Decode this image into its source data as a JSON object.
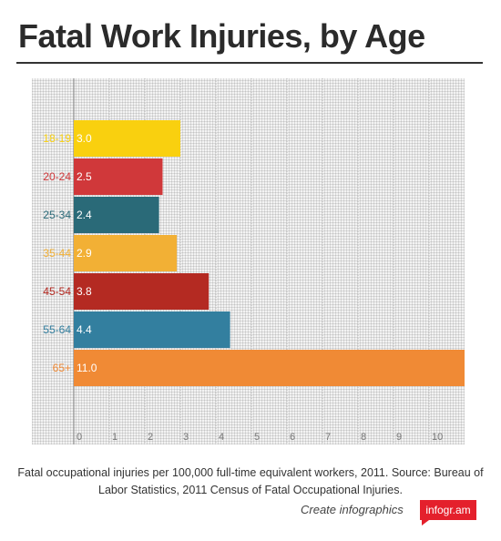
{
  "title": "Fatal Work Injuries, by Age",
  "caption": "Fatal occupational injuries per 100,000 full-time equivalent workers, 2011. Source: Bureau of Labor Statistics, 2011 Census of Fatal Occupational Injuries.",
  "footer": {
    "create_label": "Create infographics",
    "brand": "infogr.am"
  },
  "colors": {
    "title": "#2b2b2b",
    "brand": "#e4202c"
  },
  "chart_data": {
    "type": "bar",
    "orientation": "horizontal",
    "categories": [
      "18-19",
      "20-24",
      "25-34",
      "35-44",
      "45-54",
      "55-64",
      "65+"
    ],
    "values": [
      3.0,
      2.5,
      2.4,
      2.9,
      3.8,
      4.4,
      11.0
    ],
    "value_labels": [
      "3.0",
      "2.5",
      "2.4",
      "2.9",
      "3.8",
      "4.4",
      "11.0"
    ],
    "colors": [
      "#f9d00f",
      "#d0383a",
      "#2a6a78",
      "#f2b035",
      "#b42a22",
      "#337f9f",
      "#f08a35"
    ],
    "xlim": [
      0,
      11
    ],
    "xticks": [
      0,
      1,
      2,
      3,
      4,
      5,
      6,
      7,
      8,
      9,
      10
    ],
    "grid": true
  }
}
